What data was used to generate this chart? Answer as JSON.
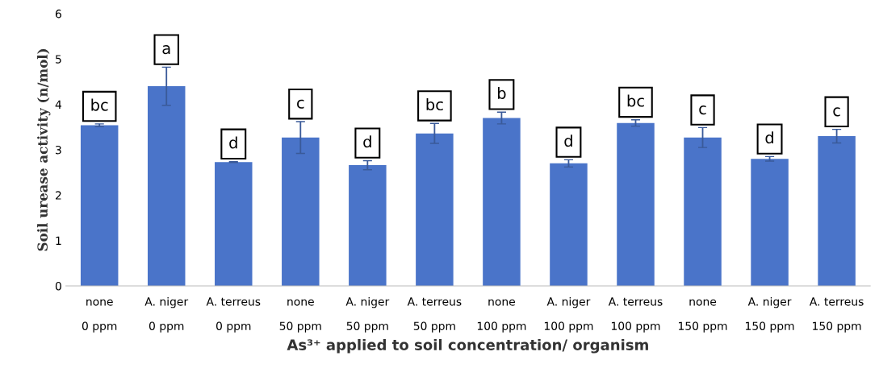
{
  "chart_data": {
    "type": "bar",
    "xlabel": "As³⁺ applied to soil concentration/ organism",
    "ylabel": "Soil urease activity (n/mol)",
    "categories": [
      "none\n0 ppm",
      "A. niger\n0 ppm",
      "A. terreus\n0 ppm",
      "none\n50 ppm",
      "A. niger\n50 ppm",
      "A. terreus\n50 ppm",
      "none\n100 ppm",
      "A. niger\n100 ppm",
      "A. terreus\n100 ppm",
      "none\n150 ppm",
      "A. niger\n150 ppm",
      "A. terreus\n150 ppm"
    ],
    "values": [
      3.54,
      4.4,
      2.73,
      3.27,
      2.66,
      3.36,
      3.7,
      2.7,
      3.59,
      3.27,
      2.8,
      3.3
    ],
    "errors": [
      0.03,
      0.42,
      0.01,
      0.35,
      0.1,
      0.22,
      0.13,
      0.08,
      0.07,
      0.22,
      0.05,
      0.15
    ],
    "color": "#4a74c9",
    "annotations": [
      "bc",
      "a",
      "d",
      "c",
      "d",
      "bc",
      "b",
      "d",
      "bc",
      "c",
      "d",
      "c"
    ],
    "ylim": [
      0,
      6
    ],
    "yticks": [
      0,
      1,
      2,
      3,
      4,
      5,
      6
    ],
    "grid": false
  }
}
